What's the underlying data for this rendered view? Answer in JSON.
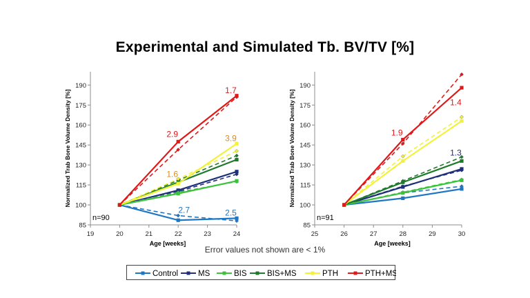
{
  "page": {
    "title": "Experimental and Simulated Tb. BV/TV [%]",
    "note": "Error values not shown are < 1%"
  },
  "colors": {
    "Control": "#1f77c4",
    "MS": "#1f2f7a",
    "BIS": "#3cc23c",
    "BIS+MS": "#1f7a2a",
    "PTH": "#f2f23a",
    "PTH+MS": "#e01818"
  },
  "legend": [
    "Control",
    "MS",
    "BIS",
    "BIS+MS",
    "PTH",
    "PTH+MS"
  ],
  "chart_data": [
    {
      "type": "line",
      "xlabel": "Age [weeks]",
      "ylabel": "Normalized Trab Bone Volume Density [%]",
      "xlim": [
        19,
        24
      ],
      "ylim": [
        85,
        200
      ],
      "xticks": [
        19,
        20,
        21,
        22,
        23,
        24
      ],
      "yticks": [
        85,
        100,
        115,
        130,
        145,
        160,
        175,
        190
      ],
      "n_label": "n=90",
      "x": [
        20,
        22,
        24
      ],
      "series": [
        {
          "name": "Control",
          "experimental": [
            100,
            88.5,
            90
          ],
          "simulated": [
            100,
            92,
            88
          ]
        },
        {
          "name": "MS",
          "experimental": [
            100,
            111,
            125
          ],
          "simulated": [
            100,
            110,
            123
          ]
        },
        {
          "name": "BIS",
          "experimental": [
            100,
            108.5,
            118
          ],
          "simulated": [
            100,
            109.5,
            117.5
          ]
        },
        {
          "name": "BIS+MS",
          "experimental": [
            100,
            117,
            134
          ],
          "simulated": [
            100,
            118.5,
            137
          ]
        },
        {
          "name": "PTH",
          "experimental": [
            100,
            116,
            146
          ],
          "simulated": [
            100,
            119.5,
            140.5
          ]
        },
        {
          "name": "PTH+MS",
          "experimental": [
            100,
            147.5,
            182
          ],
          "simulated": [
            100,
            141.5,
            181
          ]
        }
      ],
      "annotations": [
        {
          "text": "1.7",
          "x": 23.8,
          "y": 184,
          "series": "PTH+MS"
        },
        {
          "text": "2.9",
          "x": 21.8,
          "y": 151,
          "series": "PTH+MS"
        },
        {
          "text": "3.9",
          "x": 23.8,
          "y": 148,
          "series": "PTH"
        },
        {
          "text": "1.6",
          "x": 21.8,
          "y": 121,
          "series": "PTH"
        },
        {
          "text": "2.7",
          "x": 22.2,
          "y": 94,
          "series": "Control"
        },
        {
          "text": "2.5",
          "x": 23.8,
          "y": 92,
          "series": "Control"
        }
      ]
    },
    {
      "type": "line",
      "xlabel": "Age [weeks]",
      "ylabel": "Normalized Trab Bone Volume Density [%]",
      "xlim": [
        25,
        30
      ],
      "ylim": [
        85,
        200
      ],
      "xticks": [
        25,
        26,
        27,
        28,
        29,
        30
      ],
      "yticks": [
        85,
        100,
        115,
        130,
        145,
        160,
        175,
        190
      ],
      "n_label": "n=91",
      "x": [
        26,
        28,
        30
      ],
      "series": [
        {
          "name": "Control",
          "experimental": [
            100,
            105,
            112
          ],
          "simulated": [
            100,
            109,
            114
          ]
        },
        {
          "name": "MS",
          "experimental": [
            100,
            113.5,
            127
          ],
          "simulated": [
            100,
            114,
            126
          ]
        },
        {
          "name": "BIS",
          "experimental": [
            100,
            109,
            118.5
          ],
          "simulated": [
            100,
            109.5,
            119
          ]
        },
        {
          "name": "BIS+MS",
          "experimental": [
            100,
            117,
            133
          ],
          "simulated": [
            100,
            118,
            136
          ]
        },
        {
          "name": "PTH",
          "experimental": [
            100,
            133,
            163
          ],
          "simulated": [
            100,
            136.5,
            166
          ]
        },
        {
          "name": "PTH+MS",
          "experimental": [
            100,
            149,
            188
          ],
          "simulated": [
            100,
            146,
            198
          ]
        }
      ],
      "annotations": [
        {
          "text": "1.9",
          "x": 27.8,
          "y": 152,
          "series": "PTH+MS"
        },
        {
          "text": "1.4",
          "x": 29.8,
          "y": 175,
          "series": "PTH+MS"
        },
        {
          "text": "1.3",
          "x": 29.8,
          "y": 137,
          "series": "MS"
        }
      ]
    }
  ]
}
